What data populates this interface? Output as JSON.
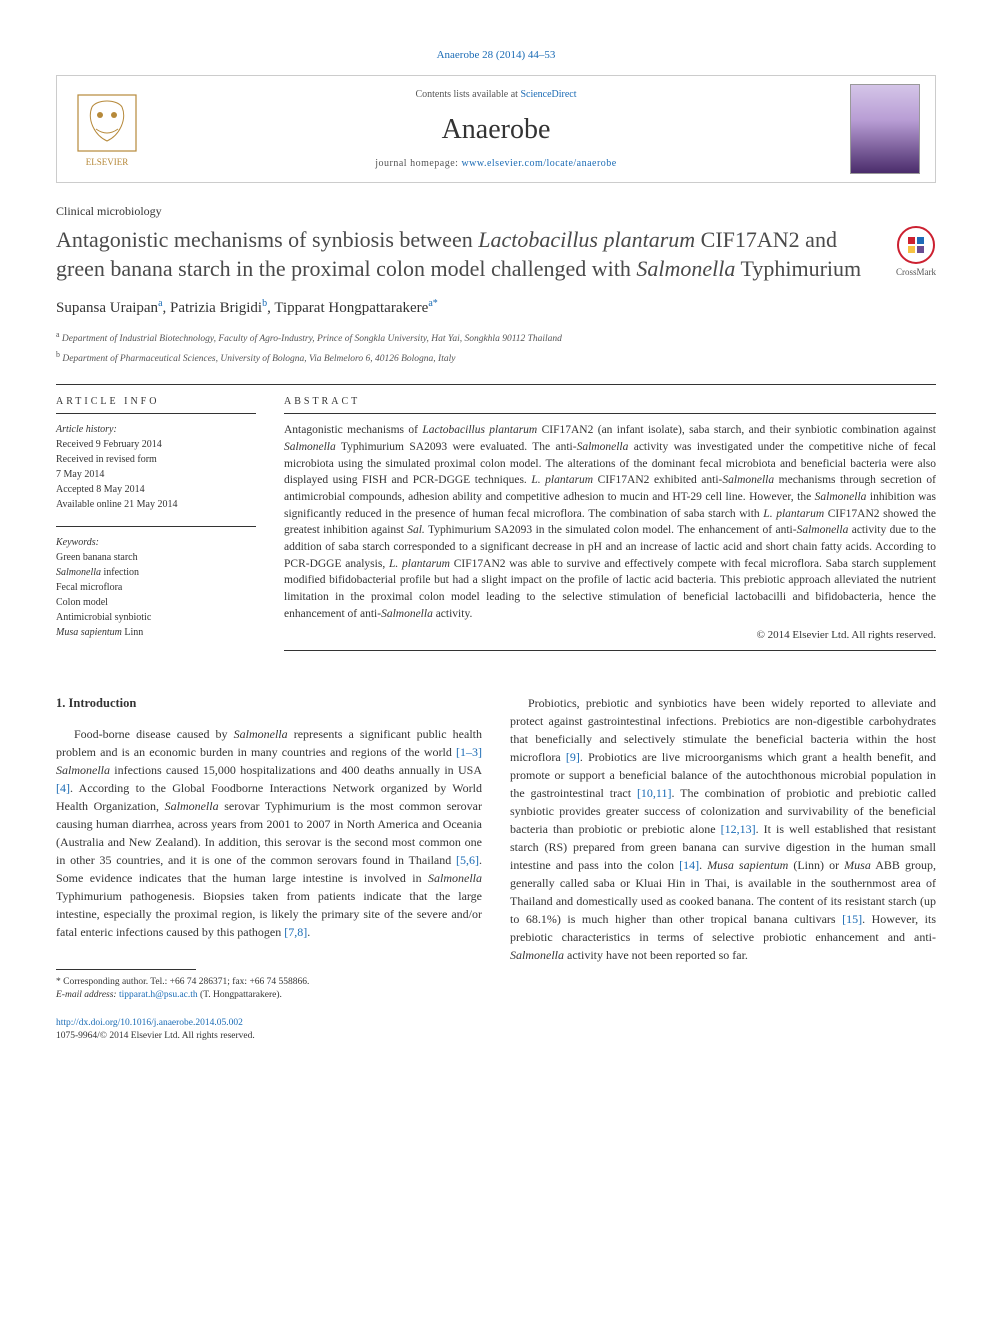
{
  "citation": "Anaerobe 28 (2014) 44–53",
  "header": {
    "contents_prefix": "Contents lists available at ",
    "contents_link": "ScienceDirect",
    "journal": "Anaerobe",
    "homepage_prefix": "journal homepage: ",
    "homepage_url": "www.elsevier.com/locate/anaerobe"
  },
  "section_label": "Clinical microbiology",
  "title_parts": {
    "p1": "Antagonistic mechanisms of synbiosis between ",
    "i1": "Lactobacillus plantarum",
    "p2": " CIF17AN2 and green banana starch in the proximal colon model challenged with ",
    "i2": "Salmonella",
    "p3": " Typhimurium"
  },
  "crossmark_label": "CrossMark",
  "authors": {
    "a1_name": "Supansa Uraipan",
    "a1_aff": "a",
    "a2_name": "Patrizia Brigidi",
    "a2_aff": "b",
    "a3_name": "Tipparat Hongpattarakere",
    "a3_aff": "a",
    "star": "*",
    "sep": ", "
  },
  "affiliations": {
    "a_sup": "a",
    "a_text": " Department of Industrial Biotechnology, Faculty of Agro-Industry, Prince of Songkla University, Hat Yai, Songkhla 90112 Thailand",
    "b_sup": "b",
    "b_text": " Department of Pharmaceutical Sciences, University of Bologna, Via Belmeloro 6, 40126 Bologna, Italy"
  },
  "info": {
    "heading_info": "ARTICLE INFO",
    "history_head": "Article history:",
    "received": "Received 9 February 2014",
    "revised1": "Received in revised form",
    "revised2": "7 May 2014",
    "accepted": "Accepted 8 May 2014",
    "online": "Available online 21 May 2014",
    "keywords_head": "Keywords:",
    "kw1": "Green banana starch",
    "kw2_i": "Salmonella",
    "kw2_t": " infection",
    "kw3": "Fecal microflora",
    "kw4": "Colon model",
    "kw5": "Antimicrobial synbiotic",
    "kw6_i": "Musa sapientum",
    "kw6_t": " Linn"
  },
  "abstract": {
    "heading": "ABSTRACT",
    "text_parts": [
      {
        "t": "Antagonistic mechanisms of "
      },
      {
        "i": "Lactobacillus plantarum"
      },
      {
        "t": " CIF17AN2 (an infant isolate), saba starch, and their synbiotic combination against "
      },
      {
        "i": "Salmonella"
      },
      {
        "t": " Typhimurium SA2093 were evaluated. The anti-"
      },
      {
        "i": "Salmonella"
      },
      {
        "t": " activity was investigated under the competitive niche of fecal microbiota using the simulated proximal colon model. The alterations of the dominant fecal microbiota and beneficial bacteria were also displayed using FISH and PCR-DGGE techniques. "
      },
      {
        "i": "L. plantarum"
      },
      {
        "t": " CIF17AN2 exhibited anti-"
      },
      {
        "i": "Salmonella"
      },
      {
        "t": " mechanisms through secretion of antimicrobial compounds, adhesion ability and competitive adhesion to mucin and HT-29 cell line. However, the "
      },
      {
        "i": "Salmonella"
      },
      {
        "t": " inhibition was significantly reduced in the presence of human fecal microflora. The combination of saba starch with "
      },
      {
        "i": "L. plantarum"
      },
      {
        "t": " CIF17AN2 showed the greatest inhibition against "
      },
      {
        "i": "Sal."
      },
      {
        "t": " Typhimurium SA2093 in the simulated colon model. The enhancement of anti-"
      },
      {
        "i": "Salmonella"
      },
      {
        "t": " activity due to the addition of saba starch corresponded to a significant decrease in pH and an increase of lactic acid and short chain fatty acids. According to PCR-DGGE analysis, "
      },
      {
        "i": "L. plantarum"
      },
      {
        "t": " CIF17AN2 was able to survive and effectively compete with fecal microflora. Saba starch supplement modified bifidobacterial profile but had a slight impact on the profile of lactic acid bacteria. This prebiotic approach alleviated the nutrient limitation in the proximal colon model leading to the selective stimulation of beneficial lactobacilli and bifidobacteria, hence the enhancement of anti-"
      },
      {
        "i": "Salmonella"
      },
      {
        "t": " activity."
      }
    ],
    "copyright": "© 2014 Elsevier Ltd. All rights reserved."
  },
  "intro": {
    "heading": "1. Introduction",
    "col1_parts": [
      {
        "t": "Food-borne disease caused by "
      },
      {
        "i": "Salmonella"
      },
      {
        "t": " represents a significant public health problem and is an economic burden in many countries and regions of the world "
      },
      {
        "a": "[1–3]"
      },
      {
        "t": " "
      },
      {
        "i": "Salmonella"
      },
      {
        "t": " infections caused 15,000 hospitalizations and 400 deaths annually in USA "
      },
      {
        "a": "[4]"
      },
      {
        "t": ". According to the Global Foodborne Interactions Network organized by World Health Organization, "
      },
      {
        "i": "Salmonella"
      },
      {
        "t": " serovar Typhimurium is the most common serovar causing human diarrhea, across years from 2001 to 2007 in North America and Oceania (Australia and New Zealand). In addition, this serovar is the second most common one in other 35 countries, and it is one of the common serovars found in Thailand "
      },
      {
        "a": "[5,6]"
      },
      {
        "t": ". Some evidence indicates that the human large intestine is involved in "
      },
      {
        "i": "Salmonella"
      },
      {
        "t": " Typhimurium pathogenesis. Biopsies taken from patients indicate that the large intestine, especially the proximal region, is likely the primary site of the severe and/or fatal enteric infections caused by this pathogen "
      },
      {
        "a": "[7,8]"
      },
      {
        "t": "."
      }
    ],
    "col2_parts": [
      {
        "t": "Probiotics, prebiotic and synbiotics have been widely reported to alleviate and protect against gastrointestinal infections. Prebiotics are non-digestible carbohydrates that beneficially and selectively stimulate the beneficial bacteria within the host microflora "
      },
      {
        "a": "[9]"
      },
      {
        "t": ". Probiotics are live microorganisms which grant a health benefit, and promote or support a beneficial balance of the autochthonous microbial population in the gastrointestinal tract "
      },
      {
        "a": "[10,11]"
      },
      {
        "t": ". The combination of probiotic and prebiotic called synbiotic provides greater success of colonization and survivability of the beneficial bacteria than probiotic or prebiotic alone "
      },
      {
        "a": "[12,13]"
      },
      {
        "t": ". It is well established that resistant starch (RS) prepared from green banana can survive digestion in the human small intestine and pass into the colon "
      },
      {
        "a": "[14]"
      },
      {
        "t": ". "
      },
      {
        "i": "Musa sapientum"
      },
      {
        "t": " (Linn) or "
      },
      {
        "i": "Musa"
      },
      {
        "t": " ABB group, generally called saba or Kluai Hin in Thai, is available in the southernmost area of Thailand and domestically used as cooked banana. The content of its resistant starch (up to 68.1%) is much higher than other tropical banana cultivars "
      },
      {
        "a": "[15]"
      },
      {
        "t": ". However, its prebiotic characteristics in terms of selective probiotic enhancement and anti-"
      },
      {
        "i": "Salmonella"
      },
      {
        "t": " activity have not been reported so far."
      }
    ]
  },
  "footnotes": {
    "corr_label": "* Corresponding author. Tel.: +66 74 286371; fax: +66 74 558866.",
    "email_label": "E-mail address: ",
    "email": "tipparat.h@psu.ac.th",
    "email_who": " (T. Hongpattarakere)."
  },
  "footer": {
    "doi": "http://dx.doi.org/10.1016/j.anaerobe.2014.05.002",
    "issn": "1075-9964/© 2014 Elsevier Ltd. All rights reserved."
  },
  "colors": {
    "link": "#1a6bb5",
    "text": "#333333",
    "border": "#cccccc",
    "crossmark_ring": "#cc2030"
  }
}
